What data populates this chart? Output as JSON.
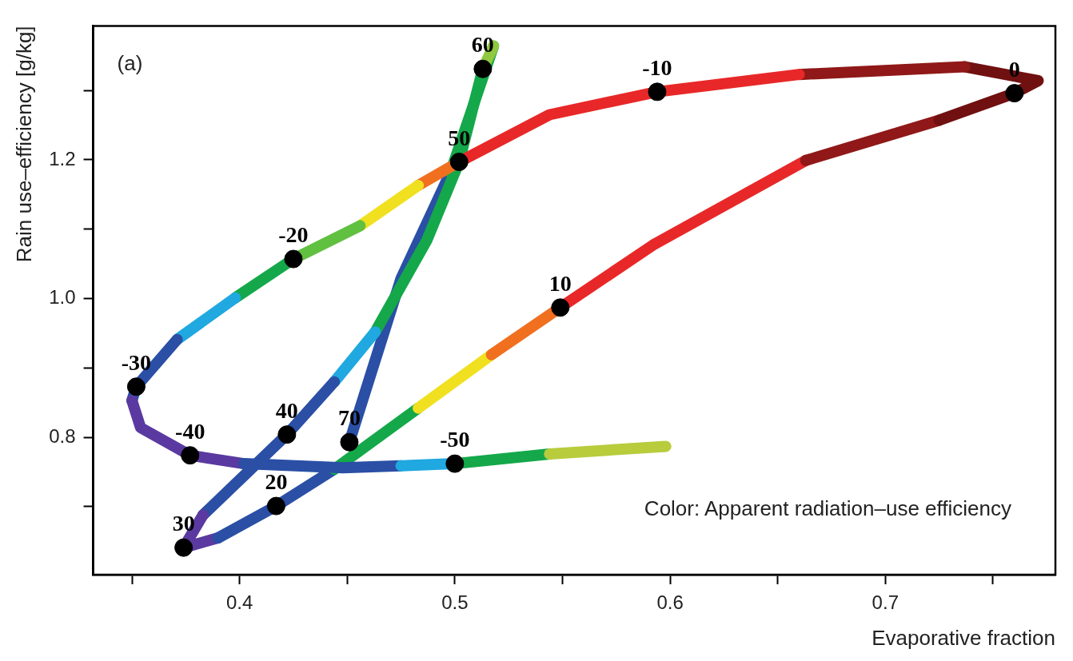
{
  "chart_data": {
    "type": "line",
    "xlabel": "Evaporative fraction",
    "ylabel": "Rain use–efficiency [g/kg]",
    "annotations": [
      "(a)",
      "Color: Apparent radiation–use efficiency",
      {
        "text": "-50",
        "x": 0.5,
        "y": 0.762
      },
      {
        "text": "-40",
        "x": 0.377,
        "y": 0.774
      },
      {
        "text": "-30",
        "x": 0.352,
        "y": 0.873
      },
      {
        "text": "-20",
        "x": 0.425,
        "y": 1.057
      },
      {
        "text": "-10",
        "x": 0.594,
        "y": 1.298
      },
      {
        "text": "0",
        "x": 0.76,
        "y": 1.296
      },
      {
        "text": "10",
        "x": 0.549,
        "y": 0.987
      },
      {
        "text": "20",
        "x": 0.417,
        "y": 0.701
      },
      {
        "text": "30",
        "x": 0.374,
        "y": 0.641
      },
      {
        "text": "40",
        "x": 0.422,
        "y": 0.804
      },
      {
        "text": "50",
        "x": 0.502,
        "y": 1.197
      },
      {
        "text": "60",
        "x": 0.513,
        "y": 1.331
      },
      {
        "text": "70",
        "x": 0.451,
        "y": 0.793
      }
    ],
    "xlim": [
      0.332,
      0.779
    ],
    "ylim": [
      0.602,
      1.393
    ],
    "xticks": [
      {
        "value": 0.35,
        "label": null
      },
      0.4,
      {
        "value": 0.45,
        "label": null
      },
      0.5,
      {
        "value": 0.55,
        "label": null
      },
      0.6,
      {
        "value": 0.65,
        "label": null
      },
      0.7,
      {
        "value": 0.75,
        "label": null
      }
    ],
    "yticks": [
      {
        "value": 0.7,
        "label": null
      },
      0.8,
      {
        "value": 0.9,
        "label": null
      },
      {
        "value": 1.0,
        "label": "1.0"
      },
      {
        "value": 1.1,
        "label": null
      },
      1.2,
      {
        "value": 1.3,
        "label": null
      }
    ],
    "grid": false,
    "line_style": "solid",
    "marker": "none",
    "series": [
      {
        "color": "#b8cc3c",
        "x": [
          0.598,
          0.544
        ],
        "values": [
          0.787,
          0.776
        ]
      },
      {
        "color": "#14a84a",
        "x": [
          0.544,
          0.5
        ],
        "values": [
          0.776,
          0.762
        ]
      },
      {
        "color": "#20a8e0",
        "x": [
          0.5,
          0.475
        ],
        "values": [
          0.762,
          0.759
        ]
      },
      {
        "color": "#2a4fa5",
        "x": [
          0.475,
          0.448,
          0.402
        ],
        "values": [
          0.759,
          0.756,
          0.762
        ]
      },
      {
        "color": "#5a3aa0",
        "x": [
          0.402,
          0.377,
          0.354,
          0.35
        ],
        "values": [
          0.762,
          0.774,
          0.814,
          0.853
        ]
      },
      {
        "color": "#2a4fa5",
        "x": [
          0.35,
          0.352,
          0.371
        ],
        "values": [
          0.853,
          0.873,
          0.941
        ]
      },
      {
        "color": "#20a8e0",
        "x": [
          0.371,
          0.398
        ],
        "values": [
          0.941,
          1.001
        ]
      },
      {
        "color": "#14a84a",
        "x": [
          0.398,
          0.425
        ],
        "values": [
          1.001,
          1.057
        ]
      },
      {
        "color": "#60c040",
        "x": [
          0.425,
          0.456
        ],
        "values": [
          1.057,
          1.105
        ]
      },
      {
        "color": "#f0e020",
        "x": [
          0.456,
          0.483
        ],
        "values": [
          1.105,
          1.163
        ]
      },
      {
        "color": "#f07020",
        "x": [
          0.483,
          0.502
        ],
        "values": [
          1.163,
          1.197
        ]
      },
      {
        "color": "#e82828",
        "x": [
          0.502,
          0.544,
          0.594,
          0.66
        ],
        "values": [
          1.197,
          1.265,
          1.298,
          1.323
        ]
      },
      {
        "color": "#901818",
        "x": [
          0.66,
          0.737
        ],
        "values": [
          1.323,
          1.334
        ]
      },
      {
        "color": "#701010",
        "x": [
          0.737,
          0.771,
          0.76,
          0.725
        ],
        "values": [
          1.334,
          1.314,
          1.296,
          1.257
        ]
      },
      {
        "color": "#901818",
        "x": [
          0.725,
          0.663
        ],
        "values": [
          1.257,
          1.199
        ]
      },
      {
        "color": "#e82828",
        "x": [
          0.663,
          0.592,
          0.549
        ],
        "values": [
          1.199,
          1.077,
          0.987
        ]
      },
      {
        "color": "#f07020",
        "x": [
          0.549,
          0.517
        ],
        "values": [
          0.987,
          0.919
        ]
      },
      {
        "color": "#f0e020",
        "x": [
          0.517,
          0.483
        ],
        "values": [
          0.919,
          0.842
        ]
      },
      {
        "color": "#14a84a",
        "x": [
          0.483,
          0.444
        ],
        "values": [
          0.842,
          0.754
        ]
      },
      {
        "color": "#2a4fa5",
        "x": [
          0.444,
          0.417,
          0.39
        ],
        "values": [
          0.754,
          0.701,
          0.655
        ]
      },
      {
        "color": "#5a3aa0",
        "x": [
          0.39,
          0.374,
          0.383
        ],
        "values": [
          0.655,
          0.641,
          0.688
        ]
      },
      {
        "color": "#2a4fa5",
        "x": [
          0.383,
          0.422,
          0.444
        ],
        "values": [
          0.688,
          0.804,
          0.88
        ]
      },
      {
        "color": "#20a8e0",
        "x": [
          0.444,
          0.463
        ],
        "values": [
          0.88,
          0.952
        ]
      },
      {
        "color": "#14a84a",
        "x": [
          0.463,
          0.487,
          0.502,
          0.513
        ],
        "values": [
          0.952,
          1.084,
          1.197,
          1.331
        ]
      },
      {
        "color": "#90c840",
        "x": [
          0.513,
          0.518
        ],
        "values": [
          1.331,
          1.364
        ]
      },
      {
        "color": "#14a84a",
        "x": [
          0.518,
          0.498
        ],
        "values": [
          1.364,
          1.182
        ]
      },
      {
        "color": "#2a4fa5",
        "x": [
          0.498,
          0.475,
          0.451
        ],
        "values": [
          1.182,
          1.029,
          0.793
        ]
      },
      {
        "type": "scatter",
        "color": "#000000",
        "marker": "circle",
        "x": [
          0.5,
          0.377,
          0.352,
          0.425,
          0.594,
          0.76,
          0.549,
          0.417,
          0.374,
          0.422,
          0.502,
          0.513,
          0.451
        ],
        "values": [
          0.762,
          0.774,
          0.873,
          1.057,
          1.298,
          1.296,
          0.987,
          0.701,
          0.641,
          0.804,
          1.197,
          1.331,
          0.793
        ]
      }
    ]
  }
}
